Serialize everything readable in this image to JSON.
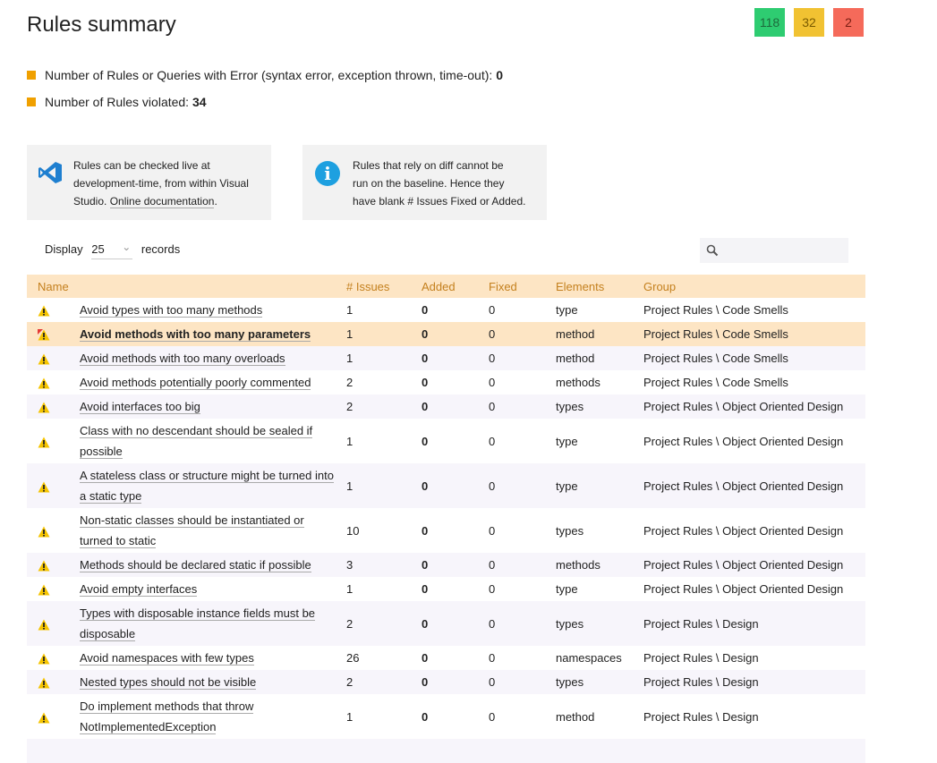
{
  "header": {
    "title": "Rules summary",
    "badges": {
      "green": "118",
      "yellow": "32",
      "red": "2"
    }
  },
  "stats": [
    {
      "label": "Number of Rules or Queries with Error (syntax error, exception thrown, time-out): ",
      "value": "0"
    },
    {
      "label": "Number of Rules violated: ",
      "value": "34"
    }
  ],
  "info_boxes": {
    "vs": {
      "line1": "Rules can be checked live at",
      "line2": "development-time, from within Visual",
      "line3_pre": "Studio. ",
      "link": "Online documentation",
      "line3_post": "."
    },
    "diff": {
      "line1": "Rules that rely on diff cannot be",
      "line2": "run on the baseline. Hence they",
      "line3": "have blank # Issues Fixed or Added."
    }
  },
  "controls": {
    "display_label": "Display",
    "page_size": "25",
    "records_label": "records",
    "search_placeholder": ""
  },
  "table": {
    "headers": {
      "name": "Name",
      "issues": "# Issues",
      "added": "Added",
      "fixed": "Fixed",
      "elements": "Elements",
      "group": "Group"
    },
    "rows": [
      {
        "name": "Avoid types with too many methods",
        "issues": "1",
        "added": "0",
        "fixed": "0",
        "elements": "type",
        "group": "Project Rules \\ Code Smells"
      },
      {
        "name": "Avoid methods with too many parameters",
        "issues": "1",
        "added": "0",
        "fixed": "0",
        "elements": "method",
        "group": "Project Rules \\ Code Smells"
      },
      {
        "name": "Avoid methods with too many overloads",
        "issues": "1",
        "added": "0",
        "fixed": "0",
        "elements": "method",
        "group": "Project Rules \\ Code Smells"
      },
      {
        "name": "Avoid methods potentially poorly commented",
        "issues": "2",
        "added": "0",
        "fixed": "0",
        "elements": "methods",
        "group": "Project Rules \\ Code Smells"
      },
      {
        "name": "Avoid interfaces too big",
        "issues": "2",
        "added": "0",
        "fixed": "0",
        "elements": "types",
        "group": "Project Rules \\ Object Oriented Design"
      },
      {
        "name1": "Class with no descendant should be sealed if",
        "name2": "possible",
        "issues": "1",
        "added": "0",
        "fixed": "0",
        "elements": "type",
        "group": "Project Rules \\ Object Oriented Design"
      },
      {
        "name1": "A stateless class or structure might be turned into",
        "name2": "a static type",
        "issues": "1",
        "added": "0",
        "fixed": "0",
        "elements": "type",
        "group": "Project Rules \\ Object Oriented Design"
      },
      {
        "name1": "Non-static classes should be instantiated or",
        "name2": "turned to static",
        "issues": "10",
        "added": "0",
        "fixed": "0",
        "elements": "types",
        "group": "Project Rules \\ Object Oriented Design"
      },
      {
        "name": "Methods should be declared static if possible",
        "issues": "3",
        "added": "0",
        "fixed": "0",
        "elements": "methods",
        "group": "Project Rules \\ Object Oriented Design"
      },
      {
        "name": "Avoid empty interfaces",
        "issues": "1",
        "added": "0",
        "fixed": "0",
        "elements": "type",
        "group": "Project Rules \\ Object Oriented Design"
      },
      {
        "name1": "Types with disposable instance fields must be",
        "name2": "disposable",
        "issues": "2",
        "added": "0",
        "fixed": "0",
        "elements": "types",
        "group": "Project Rules \\ Design"
      },
      {
        "name": "Avoid namespaces with few types",
        "issues": "26",
        "added": "0",
        "fixed": "0",
        "elements": "namespaces",
        "group": "Project Rules \\ Design"
      },
      {
        "name": "Nested types should not be visible",
        "issues": "2",
        "added": "0",
        "fixed": "0",
        "elements": "types",
        "group": "Project Rules \\ Design"
      },
      {
        "name1": "Do implement methods that throw",
        "name2": "NotImplementedException",
        "issues": "1",
        "added": "0",
        "fixed": "0",
        "elements": "method",
        "group": "Project Rules \\ Design"
      }
    ]
  },
  "colors": {
    "header_bg": "#fde5c4",
    "header_text": "#c4801e",
    "warn": "#f5c400",
    "badge_green": "#2ecc71",
    "badge_yellow": "#f1c232",
    "badge_red": "#f56a5a"
  }
}
